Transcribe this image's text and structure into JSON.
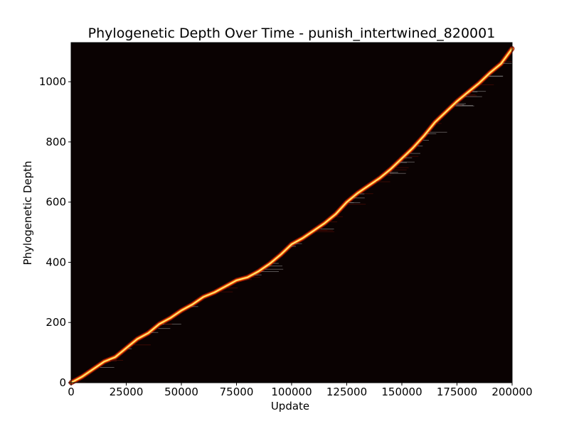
{
  "chart_data": {
    "type": "heatmap",
    "title": "Phylogenetic Depth Over Time - punish_intertwined_820001",
    "xlabel": "Update",
    "ylabel": "Phylogenetic Depth",
    "xlim": [
      0,
      200000
    ],
    "ylim": [
      0,
      1130
    ],
    "xticks": [
      0,
      25000,
      50000,
      75000,
      100000,
      125000,
      150000,
      175000,
      200000
    ],
    "yticks": [
      0,
      200,
      400,
      600,
      800,
      1000
    ],
    "grid": false,
    "legend": "none",
    "colormap": "hot",
    "background_color": "#0a0202",
    "series": [
      {
        "x": [
          0,
          5000,
          10000,
          15000,
          20000,
          25000,
          30000,
          35000,
          40000,
          45000,
          50000,
          55000,
          60000,
          65000,
          70000,
          75000,
          80000,
          85000,
          90000,
          95000,
          100000,
          105000,
          110000,
          115000,
          120000,
          125000,
          130000,
          135000,
          140000,
          145000,
          150000,
          155000,
          160000,
          165000,
          170000,
          175000,
          180000,
          185000,
          190000,
          195000,
          200000
        ],
        "y": [
          0,
          20,
          45,
          70,
          85,
          115,
          145,
          165,
          195,
          215,
          240,
          260,
          285,
          300,
          320,
          340,
          350,
          370,
          395,
          425,
          460,
          480,
          505,
          530,
          560,
          600,
          630,
          655,
          680,
          710,
          745,
          780,
          820,
          865,
          900,
          935,
          965,
          995,
          1030,
          1060,
          1110
        ]
      }
    ]
  }
}
